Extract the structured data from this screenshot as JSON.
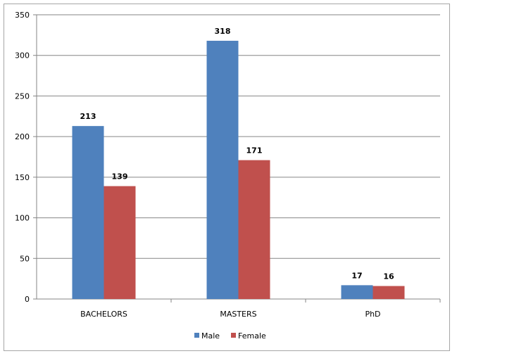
{
  "chart_data": {
    "type": "bar",
    "title": "",
    "xlabel": "",
    "ylabel": "",
    "categories": [
      "BACHELORS",
      "MASTERS",
      "PhD"
    ],
    "series": [
      {
        "name": "Male",
        "color": "#4f81bd",
        "values": [
          213,
          318,
          17
        ]
      },
      {
        "name": "Female",
        "color": "#c0504d",
        "values": [
          139,
          171,
          16
        ]
      }
    ],
    "ylim": [
      0,
      350
    ],
    "yticks": [
      0,
      50,
      100,
      150,
      200,
      250,
      300,
      350
    ],
    "grid": true,
    "legend_position": "bottom"
  }
}
